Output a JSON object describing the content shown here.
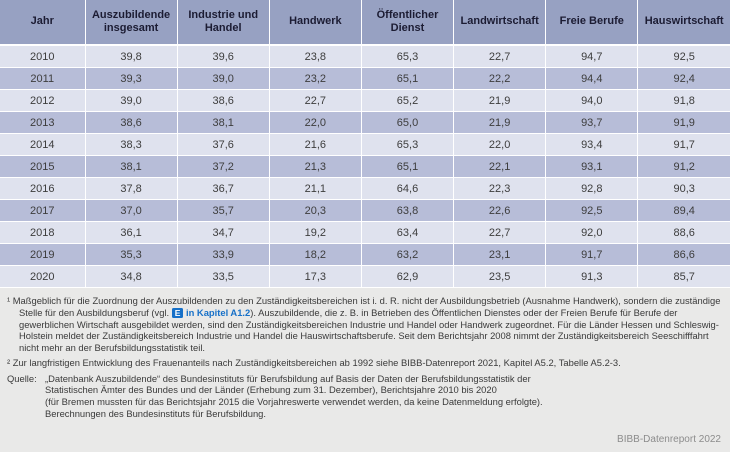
{
  "table": {
    "columns": [
      "Jahr",
      "Auszubildende insgesamt",
      "Industrie und Handel",
      "Handwerk",
      "Öffentlicher Dienst",
      "Landwirtschaft",
      "Freie Berufe",
      "Hauswirtschaft"
    ],
    "rows": [
      [
        "2010",
        "39,8",
        "39,6",
        "23,8",
        "65,3",
        "22,7",
        "94,7",
        "92,5"
      ],
      [
        "2011",
        "39,3",
        "39,0",
        "23,2",
        "65,1",
        "22,2",
        "94,4",
        "92,4"
      ],
      [
        "2012",
        "39,0",
        "38,6",
        "22,7",
        "65,2",
        "21,9",
        "94,0",
        "91,8"
      ],
      [
        "2013",
        "38,6",
        "38,1",
        "22,0",
        "65,0",
        "21,9",
        "93,7",
        "91,9"
      ],
      [
        "2014",
        "38,3",
        "37,6",
        "21,6",
        "65,3",
        "22,0",
        "93,4",
        "91,7"
      ],
      [
        "2015",
        "38,1",
        "37,2",
        "21,3",
        "65,1",
        "22,1",
        "93,1",
        "91,2"
      ],
      [
        "2016",
        "37,8",
        "36,7",
        "21,1",
        "64,6",
        "22,3",
        "92,8",
        "90,3"
      ],
      [
        "2017",
        "37,0",
        "35,7",
        "20,3",
        "63,8",
        "22,6",
        "92,5",
        "89,4"
      ],
      [
        "2018",
        "36,1",
        "34,7",
        "19,2",
        "63,4",
        "22,7",
        "92,0",
        "88,6"
      ],
      [
        "2019",
        "35,3",
        "33,9",
        "18,2",
        "63,2",
        "23,1",
        "91,7",
        "86,6"
      ],
      [
        "2020",
        "34,8",
        "33,5",
        "17,3",
        "62,9",
        "23,5",
        "91,3",
        "85,7"
      ]
    ]
  },
  "footnotes": {
    "note1_part1": "¹ Maßgeblich für die Zuordnung der Auszubildenden zu den Zuständigkeitsbereichen ist i. d. R. nicht der Ausbildungsbetrieb (Ausnahme Handwerk), sondern die zuständige Stelle für den Ausbildungsberuf (vgl. ",
    "kapitel_badge": "E",
    "kapitel_link": "in Kapitel A1.2",
    "note1_part2": "). Auszubildende, die z. B. in Betrieben des Öffentlichen Dienstes oder der Freien Berufe für Berufe der gewerblichen Wirtschaft ausgebildet werden, sind den Zuständigkeitsbereichen Industrie und Handel oder Handwerk zugeordnet. Für die Länder Hessen und Schleswig-Holstein meldet der Zuständigkeitsbereich Industrie und Handel die Hauswirtschaftsberufe. Seit dem Berichtsjahr 2008 nimmt der Zuständigkeitsbereich Seeschifffahrt nicht mehr an der Berufsbildungsstatistik teil.",
    "note2": "² Zur langfristigen Entwicklung des Frauenanteils nach Zuständigkeitsbereichen ab 1992 siehe BIBB-Datenreport 2021, Kapitel A5.2, Tabelle A5.2-3.",
    "source_label": "Quelle:",
    "source_lines": [
      "„Datenbank Auszubildende“ des Bundesinstituts für Berufsbildung auf Basis der Daten der Berufsbildungsstatistik der",
      "Statistischen Ämter des Bundes und der Länder (Erhebung zum 31. Dezember), Berichtsjahre 2010 bis 2020",
      "(für Bremen mussten für das Berichtsjahr 2015 die Vorjahreswerte verwendet werden, da keine Datenmeldung erfolgte).",
      "Berechnungen des Bundesinstituts für Berufsbildung."
    ],
    "report_credit": "BIBB-Datenreport 2022"
  },
  "colors": {
    "header_bg": "#97a1c2",
    "row_light": "#dfe2ee",
    "row_dark": "#b7bdd8",
    "footer_bg": "#e9e9e8",
    "link_blue": "#1670c8"
  }
}
